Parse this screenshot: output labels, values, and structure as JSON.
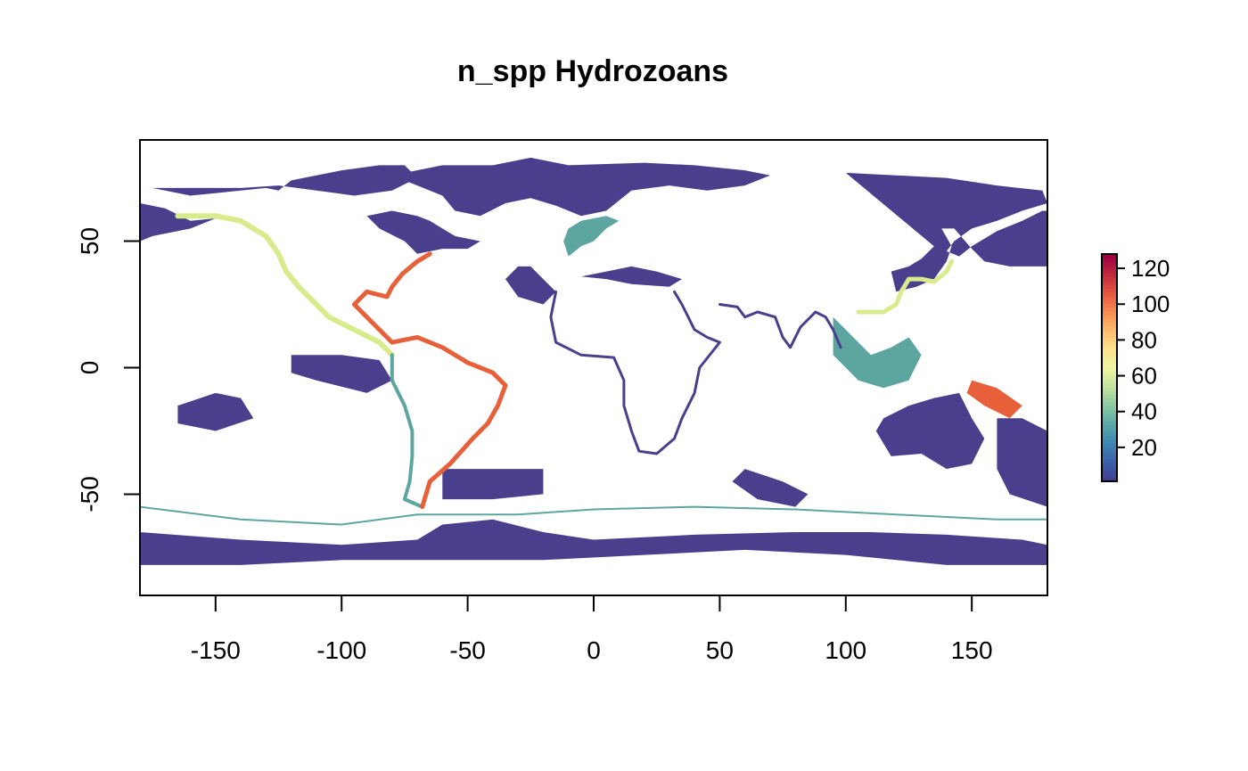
{
  "title": "n_spp Hydrozoans",
  "map": {
    "x_range": [
      -180,
      180
    ],
    "y_range": [
      -90,
      90
    ],
    "x_ticks": [
      -150,
      -100,
      -50,
      0,
      50,
      100,
      150
    ],
    "x_tick_labels": [
      "-150",
      "-100",
      "-50",
      "0",
      "50",
      "100",
      "150"
    ],
    "y_ticks": [
      50,
      0,
      -50
    ],
    "y_tick_labels": [
      "50",
      "0",
      "-50"
    ],
    "background": "#ffffff"
  },
  "legend": {
    "min": 1,
    "max": 128,
    "ticks": [
      20,
      40,
      60,
      80,
      100,
      120
    ],
    "tick_labels": [
      "20",
      "40",
      "60",
      "80",
      "100",
      "120"
    ],
    "palette": [
      "#3F3F91",
      "#3C62AA",
      "#3E88B2",
      "#5AA9A8",
      "#8CC9A2",
      "#C3E39E",
      "#EDF6A0",
      "#FCE38C",
      "#FDBD6E",
      "#F88C51",
      "#E6563F",
      "#C42A3E",
      "#9E0142"
    ]
  },
  "regions": {
    "shelf_color": "#4A3F8C",
    "mid_color": "#5DA6A0",
    "high_color": "#D8EC8E",
    "hot_color": "#E8603A"
  }
}
